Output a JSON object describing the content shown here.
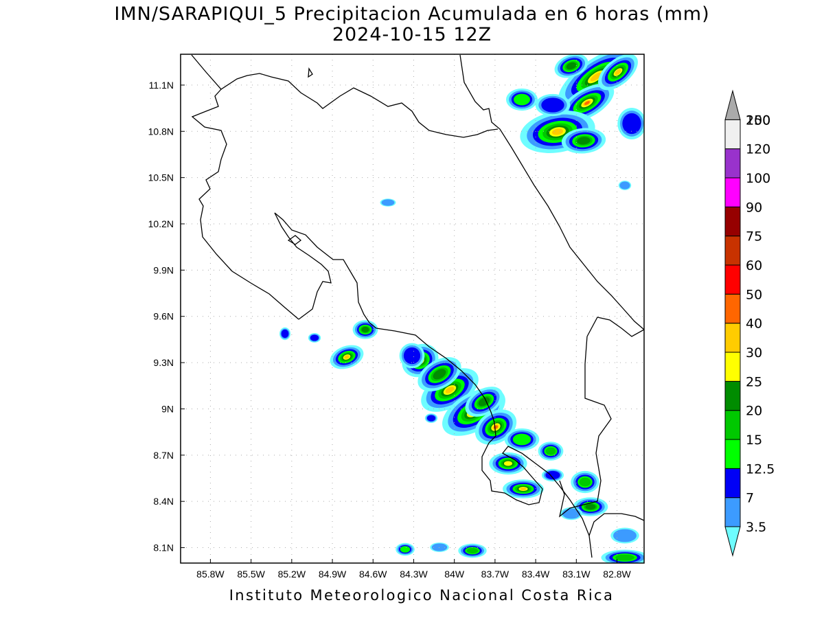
{
  "title": "IMN/SARAPIQUI_5 Precipitacion Acumulada en 6 horas (mm)",
  "subtitle": "2024-10-15 12Z",
  "credit": "Instituto Meteorologico Nacional Costa Rica",
  "map": {
    "lon_range": [
      -86.02,
      -82.6
    ],
    "lat_range": [
      8.0,
      11.3
    ],
    "lon_ticks": [
      {
        "value": -85.8,
        "label": "85.8W"
      },
      {
        "value": -85.5,
        "label": "85.5W"
      },
      {
        "value": -85.2,
        "label": "85.2W"
      },
      {
        "value": -84.9,
        "label": "84.9W"
      },
      {
        "value": -84.6,
        "label": "84.6W"
      },
      {
        "value": -84.3,
        "label": "84.3W"
      },
      {
        "value": -84.0,
        "label": "84W"
      },
      {
        "value": -83.7,
        "label": "83.7W"
      },
      {
        "value": -83.4,
        "label": "83.4W"
      },
      {
        "value": -83.1,
        "label": "83.1W"
      },
      {
        "value": -82.8,
        "label": "82.8W"
      }
    ],
    "lat_ticks": [
      {
        "value": 8.1,
        "label": "8.1N"
      },
      {
        "value": 8.4,
        "label": "8.4N"
      },
      {
        "value": 8.7,
        "label": "8.7N"
      },
      {
        "value": 9.0,
        "label": "9N"
      },
      {
        "value": 9.3,
        "label": "9.3N"
      },
      {
        "value": 9.6,
        "label": "9.6N"
      },
      {
        "value": 9.9,
        "label": "9.9N"
      },
      {
        "value": 10.2,
        "label": "10.2N"
      },
      {
        "value": 10.5,
        "label": "10.5N"
      },
      {
        "value": 10.8,
        "label": "10.8N"
      },
      {
        "value": 11.1,
        "label": "11.1N"
      }
    ],
    "grid": "dotted"
  },
  "colorbar": {
    "levels": [
      {
        "label": "3.5",
        "color": "#6efdff"
      },
      {
        "label": "7",
        "color": "#3c9bff"
      },
      {
        "label": "12.5",
        "color": "#0000f6"
      },
      {
        "label": "15",
        "color": "#00ff00"
      },
      {
        "label": "20",
        "color": "#00c800"
      },
      {
        "label": "25",
        "color": "#008c00"
      },
      {
        "label": "30",
        "color": "#ffff00"
      },
      {
        "label": "40",
        "color": "#ffcc00"
      },
      {
        "label": "50",
        "color": "#ff6600"
      },
      {
        "label": "60",
        "color": "#ff0000"
      },
      {
        "label": "75",
        "color": "#c83200"
      },
      {
        "label": "90",
        "color": "#960000"
      },
      {
        "label": "100",
        "color": "#ff00ff"
      },
      {
        "label": "120",
        "color": "#9932cc"
      },
      {
        "label": "150",
        "color": "#f0f0f0"
      },
      {
        "label": "200",
        "color": "#aaaaaa"
      }
    ]
  }
}
